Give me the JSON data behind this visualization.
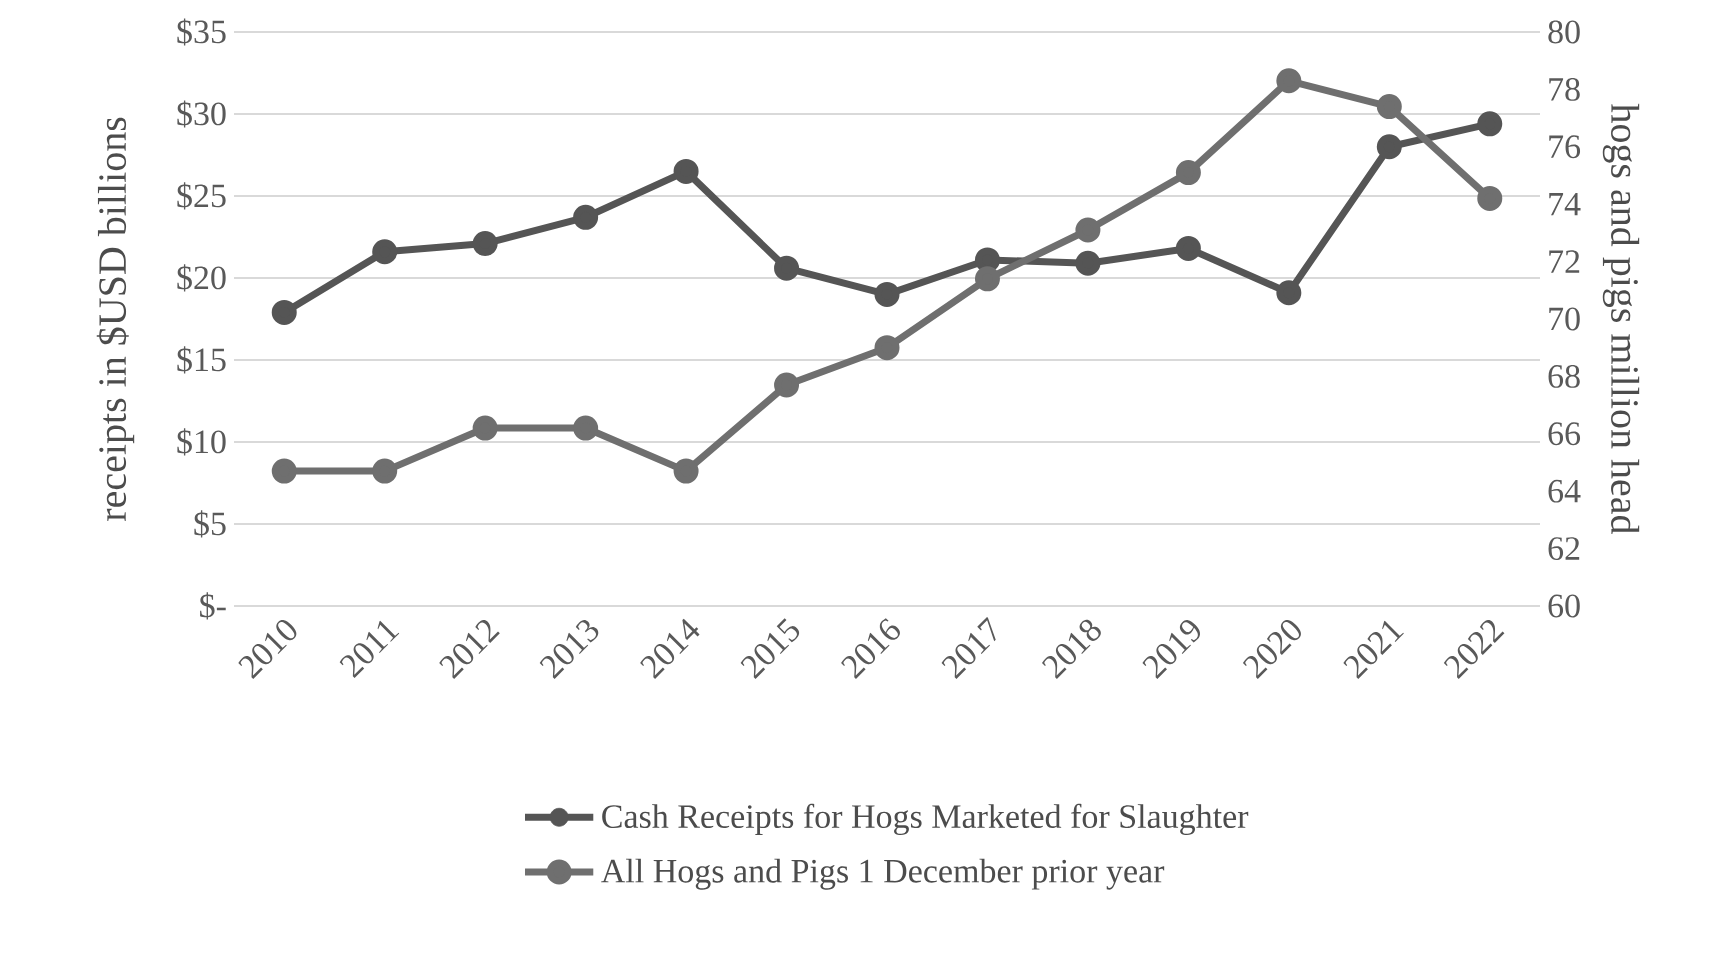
{
  "chart_data": {
    "type": "line",
    "ylabel": "receipts in $USD billions",
    "y2label": "hogs and pigs million head",
    "categories": [
      "2010",
      "2011",
      "2012",
      "2013",
      "2014",
      "2015",
      "2016",
      "2017",
      "2018",
      "2019",
      "2020",
      "2021",
      "2022"
    ],
    "series": [
      {
        "name": "Cash Receipts for Hogs Marketed for Slaughter",
        "color": "#555555",
        "values": [
          17.9,
          21.6,
          22.1,
          23.7,
          26.5,
          20.6,
          19.0,
          21.1,
          20.9,
          21.8,
          19.1,
          28.0,
          29.4
        ]
      },
      {
        "name": "All Hogs and Pigs 1 December prior year",
        "color": "#6f6f6f",
        "axis": "y2",
        "values": [
          64.7,
          64.7,
          66.2,
          66.2,
          64.7,
          67.7,
          69.0,
          71.4,
          73.1,
          75.1,
          78.3,
          77.4,
          74.2
        ]
      }
    ],
    "ylim": [
      0,
      35
    ],
    "yticks": [
      {
        "value": 0,
        "label": "$-"
      },
      {
        "value": 5,
        "label": "$5"
      },
      {
        "value": 10,
        "label": "$10"
      },
      {
        "value": 15,
        "label": "$15"
      },
      {
        "value": 20,
        "label": "$20"
      },
      {
        "value": 25,
        "label": "$25"
      },
      {
        "value": 30,
        "label": "$30"
      },
      {
        "value": 35,
        "label": "$35"
      }
    ],
    "y2lim": [
      60,
      80
    ],
    "y2ticks": [
      60,
      62,
      64,
      66,
      68,
      70,
      72,
      74,
      76,
      78,
      80
    ],
    "grid": "y",
    "legend": "bottom",
    "marker": "circle",
    "line_style": "solid"
  }
}
